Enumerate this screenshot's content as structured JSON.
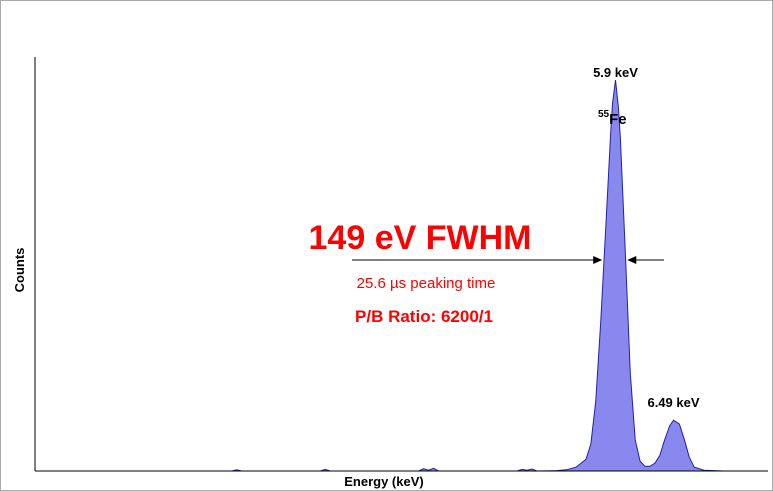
{
  "chart_data": {
    "type": "area",
    "title": "",
    "xlabel": "Energy (keV)",
    "ylabel": "Counts",
    "grid": false,
    "legend": "none",
    "fill_color": "#8888ee",
    "stroke_color": "#2222aa",
    "annotation_color": "#ff0000",
    "xlim": [
      0,
      7.45
    ],
    "ylim": [
      0,
      1.0
    ],
    "x_ticks": [],
    "y_ticks": [],
    "series": [
      {
        "x": [
          0,
          2.0,
          2.05,
          2.1,
          2.9,
          2.95,
          3.0,
          3.9,
          3.95,
          4.0,
          4.05,
          4.1,
          4.9,
          4.95,
          5.0,
          5.05,
          5.1,
          5.3,
          5.4,
          5.5,
          5.6,
          5.65,
          5.7,
          5.75,
          5.8,
          5.85,
          5.87,
          5.9,
          5.93,
          5.95,
          6.0,
          6.05,
          6.1,
          6.15,
          6.2,
          6.25,
          6.3,
          6.35,
          6.4,
          6.45,
          6.49,
          6.55,
          6.6,
          6.65,
          6.7,
          6.8,
          7.0,
          7.45
        ],
        "values": [
          0,
          0,
          0.003,
          0,
          0,
          0.004,
          0,
          0,
          0.006,
          0.002,
          0.007,
          0,
          0,
          0.004,
          0.002,
          0.005,
          0,
          0.001,
          0.003,
          0.01,
          0.03,
          0.07,
          0.18,
          0.38,
          0.62,
          0.86,
          0.94,
          1.0,
          0.93,
          0.85,
          0.56,
          0.25,
          0.08,
          0.025,
          0.012,
          0.012,
          0.02,
          0.04,
          0.08,
          0.115,
          0.13,
          0.12,
          0.08,
          0.035,
          0.01,
          0.002,
          0,
          0
        ]
      }
    ],
    "peaks": [
      {
        "x": 5.9,
        "label": "5.9 keV"
      },
      {
        "x": 6.49,
        "label": "6.49 keV"
      }
    ],
    "isotope": {
      "sup": "55",
      "symbol": "Fe"
    },
    "annotations": {
      "fwhm": "149 eV FWHM",
      "peaking_time": "25.6 µs peaking time",
      "pb_ratio": "P/B Ratio: 6200/1"
    }
  }
}
